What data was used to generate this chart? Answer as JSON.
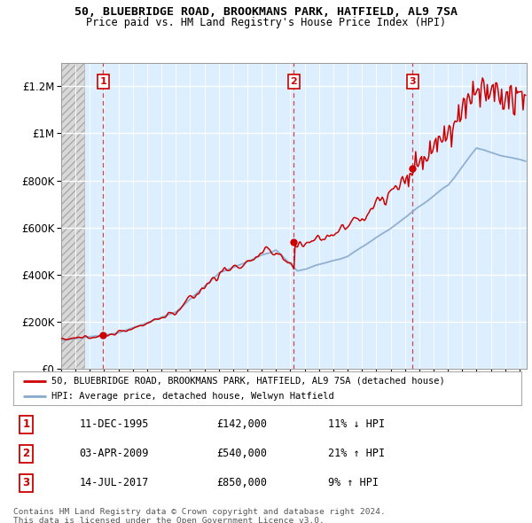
{
  "title_line1": "50, BLUEBRIDGE ROAD, BROOKMANS PARK, HATFIELD, AL9 7SA",
  "title_line2": "Price paid vs. HM Land Registry's House Price Index (HPI)",
  "ylim": [
    0,
    1300000
  ],
  "xlim_year": [
    1993,
    2025.5
  ],
  "yticks": [
    0,
    200000,
    400000,
    600000,
    800000,
    1000000,
    1200000
  ],
  "ytick_labels": [
    "£0",
    "£200K",
    "£400K",
    "£600K",
    "£800K",
    "£1M",
    "£1.2M"
  ],
  "bg_color": "#ddeeff",
  "hatch_bg": "#e0e0e0",
  "red_line_color": "#cc0000",
  "blue_line_color": "#88aacc",
  "annotations": [
    {
      "num": "1",
      "year": 1995.92,
      "price": 142000
    },
    {
      "num": "2",
      "year": 2009.25,
      "price": 540000
    },
    {
      "num": "3",
      "year": 2017.53,
      "price": 850000
    }
  ],
  "legend_entries": [
    "50, BLUEBRIDGE ROAD, BROOKMANS PARK, HATFIELD, AL9 7SA (detached house)",
    "HPI: Average price, detached house, Welwyn Hatfield"
  ],
  "footer_line1": "Contains HM Land Registry data © Crown copyright and database right 2024.",
  "footer_line2": "This data is licensed under the Open Government Licence v3.0.",
  "table_rows": [
    [
      "1",
      "11-DEC-1995",
      "£142,000",
      "11% ↓ HPI"
    ],
    [
      "2",
      "03-APR-2009",
      "£540,000",
      "21% ↑ HPI"
    ],
    [
      "3",
      "14-JUL-2017",
      "£850,000",
      "9% ↑ HPI"
    ]
  ]
}
